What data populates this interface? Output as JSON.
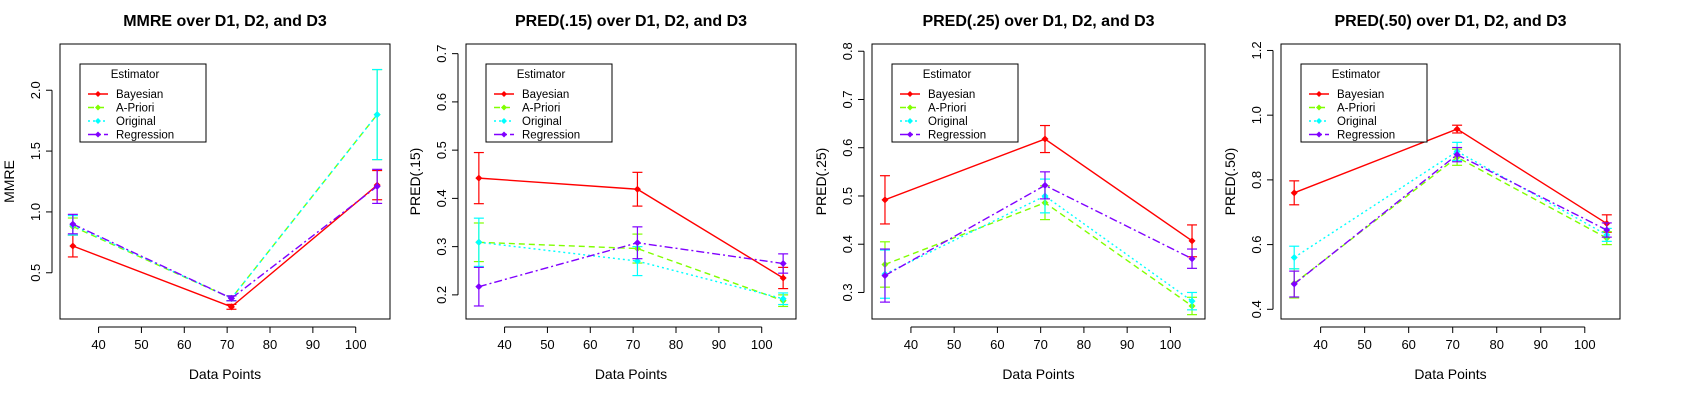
{
  "chart_data": [
    {
      "type": "line",
      "title": "MMRE over D1, D2, and D3",
      "xlabel": "Data Points",
      "ylabel": "MMRE",
      "x": [
        34,
        71,
        105
      ],
      "xlim": [
        31,
        108
      ],
      "ylim": [
        0.12,
        2.38
      ],
      "xticks": [
        40,
        50,
        60,
        70,
        80,
        90,
        100
      ],
      "yticks": [
        0.5,
        1.0,
        1.5,
        2.0
      ],
      "yticklabels": [
        "0.5",
        "1.0",
        "1.5",
        "2.0"
      ],
      "legend_title": "Estimator",
      "legend_position": "top-left",
      "series": [
        {
          "name": "Bayesian",
          "color": "#ff0000",
          "dash": "",
          "values": [
            0.72,
            0.22,
            1.22
          ],
          "err": [
            0.09,
            0.02,
            0.12
          ]
        },
        {
          "name": "A-Priori",
          "color": "#80ff00",
          "dash": "6,4",
          "values": [
            0.88,
            0.29,
            1.8
          ],
          "err": [
            0.07,
            0.02,
            0.37
          ]
        },
        {
          "name": "Original",
          "color": "#00ffff",
          "dash": "2,3",
          "values": [
            0.89,
            0.29,
            1.8
          ],
          "err": [
            0.08,
            0.02,
            0.37
          ]
        },
        {
          "name": "Regression",
          "color": "#8000ff",
          "dash": "8,3,2,3",
          "values": [
            0.9,
            0.29,
            1.21
          ],
          "err": [
            0.08,
            0.02,
            0.14
          ]
        }
      ]
    },
    {
      "type": "line",
      "title": "PRED(.15) over D1, D2, and D3",
      "xlabel": "Data Points",
      "ylabel": "PRED(.15)",
      "x": [
        34,
        71,
        105
      ],
      "xlim": [
        31,
        108
      ],
      "ylim": [
        0.15,
        0.72
      ],
      "xticks": [
        40,
        50,
        60,
        70,
        80,
        90,
        100
      ],
      "yticks": [
        0.2,
        0.3,
        0.4,
        0.5,
        0.6,
        0.7
      ],
      "yticklabels": [
        "0.2",
        "0.3",
        "0.4",
        "0.5",
        "0.6",
        "0.7"
      ],
      "legend_title": "Estimator",
      "legend_position": "top-left",
      "series": [
        {
          "name": "Bayesian",
          "color": "#ff0000",
          "dash": "",
          "values": [
            0.442,
            0.419,
            0.235
          ],
          "err": [
            0.053,
            0.035,
            0.022
          ]
        },
        {
          "name": "A-Priori",
          "color": "#80ff00",
          "dash": "6,4",
          "values": [
            0.309,
            0.296,
            0.188
          ],
          "err": [
            0.04,
            0.03,
            0.012
          ]
        },
        {
          "name": "Original",
          "color": "#00ffff",
          "dash": "2,3",
          "values": [
            0.309,
            0.27,
            0.192
          ],
          "err": [
            0.05,
            0.03,
            0.012
          ]
        },
        {
          "name": "Regression",
          "color": "#8000ff",
          "dash": "8,3,2,3",
          "values": [
            0.217,
            0.308,
            0.265
          ],
          "err": [
            0.04,
            0.033,
            0.02
          ]
        }
      ]
    },
    {
      "type": "line",
      "title": "PRED(.25) over D1, D2, and D3",
      "xlabel": "Data Points",
      "ylabel": "PRED(.25)",
      "x": [
        34,
        71,
        105
      ],
      "xlim": [
        31,
        108
      ],
      "ylim": [
        0.245,
        0.815
      ],
      "xticks": [
        40,
        50,
        60,
        70,
        80,
        90,
        100
      ],
      "yticks": [
        0.3,
        0.4,
        0.5,
        0.6,
        0.7,
        0.8
      ],
      "yticklabels": [
        "0.3",
        "0.4",
        "0.5",
        "0.6",
        "0.7",
        "0.8"
      ],
      "legend_title": "Estimator",
      "legend_position": "top-left",
      "series": [
        {
          "name": "Bayesian",
          "color": "#ff0000",
          "dash": "",
          "values": [
            0.492,
            0.618,
            0.407
          ],
          "err": [
            0.05,
            0.028,
            0.033
          ]
        },
        {
          "name": "A-Priori",
          "color": "#80ff00",
          "dash": "6,4",
          "values": [
            0.358,
            0.486,
            0.272
          ],
          "err": [
            0.047,
            0.035,
            0.018
          ]
        },
        {
          "name": "Original",
          "color": "#00ffff",
          "dash": "2,3",
          "values": [
            0.338,
            0.5,
            0.282
          ],
          "err": [
            0.05,
            0.035,
            0.018
          ]
        },
        {
          "name": "Regression",
          "color": "#8000ff",
          "dash": "8,3,2,3",
          "values": [
            0.335,
            0.522,
            0.37
          ],
          "err": [
            0.055,
            0.028,
            0.02
          ]
        }
      ]
    },
    {
      "type": "line",
      "title": "PRED(.50) over D1, D2, and D3",
      "xlabel": "Data Points",
      "ylabel": "PRED(.50)",
      "x": [
        34,
        71,
        105
      ],
      "xlim": [
        31,
        108
      ],
      "ylim": [
        0.37,
        1.22
      ],
      "xticks": [
        40,
        50,
        60,
        70,
        80,
        90,
        100
      ],
      "yticks": [
        0.4,
        0.6,
        0.8,
        1.0,
        1.2
      ],
      "yticklabels": [
        "0.4",
        "0.6",
        "0.8",
        "1.0",
        "1.2"
      ],
      "legend_title": "Estimator",
      "legend_position": "top-left",
      "series": [
        {
          "name": "Bayesian",
          "color": "#ff0000",
          "dash": "",
          "values": [
            0.76,
            0.957,
            0.665
          ],
          "err": [
            0.037,
            0.012,
            0.027
          ]
        },
        {
          "name": "A-Priori",
          "color": "#80ff00",
          "dash": "6,4",
          "values": [
            0.48,
            0.87,
            0.62
          ],
          "err": [
            0.045,
            0.025,
            0.02
          ]
        },
        {
          "name": "Original",
          "color": "#00ffff",
          "dash": "2,3",
          "values": [
            0.56,
            0.888,
            0.63
          ],
          "err": [
            0.035,
            0.028,
            0.02
          ]
        },
        {
          "name": "Regression",
          "color": "#8000ff",
          "dash": "8,3,2,3",
          "values": [
            0.478,
            0.878,
            0.645
          ],
          "err": [
            0.04,
            0.022,
            0.022
          ]
        }
      ]
    }
  ]
}
